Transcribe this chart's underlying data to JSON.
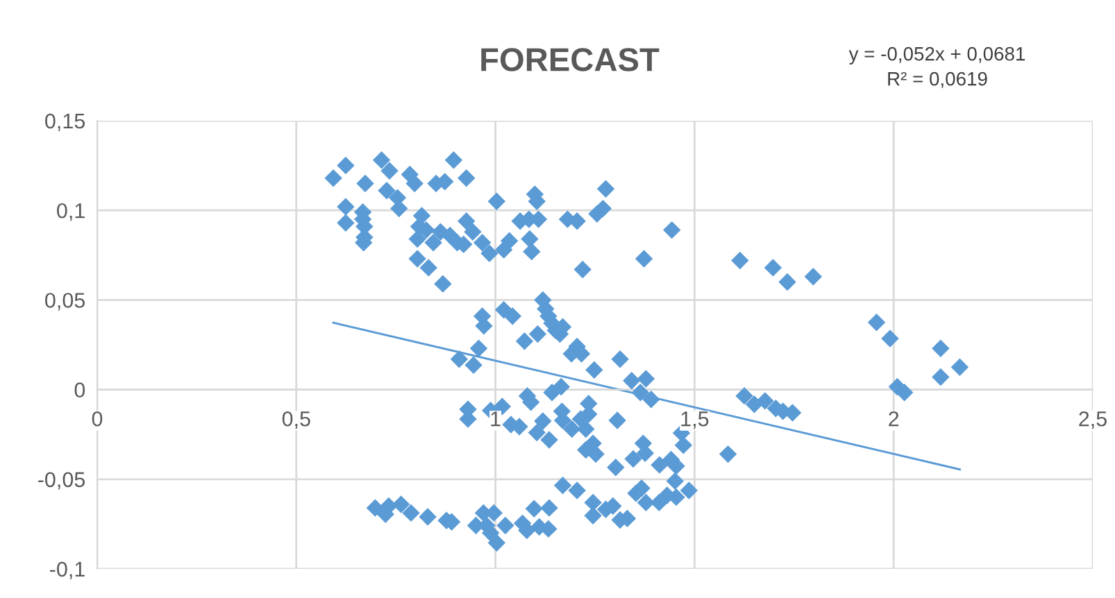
{
  "chart_data": {
    "type": "scatter",
    "title": "FORECAST",
    "annotations": [
      "y = -0,052x + 0,0681",
      "R² = 0,0619"
    ],
    "xlim": [
      0,
      2.5
    ],
    "ylim": [
      -0.1,
      0.15
    ],
    "xticks": [
      0,
      {
        "value": 0.5,
        "label": "0,5"
      },
      1,
      {
        "value": 1.5,
        "label": "1,5"
      },
      2,
      {
        "value": 2.5,
        "label": "2,5"
      }
    ],
    "yticks": [
      {
        "value": -0.1,
        "label": "-0,1"
      },
      {
        "value": -0.05,
        "label": "-0,05"
      },
      0,
      {
        "value": 0.05,
        "label": "0,05"
      },
      {
        "value": 0.1,
        "label": "0,1"
      },
      {
        "value": 0.15,
        "label": "0,15"
      }
    ],
    "grid": true,
    "legend": false,
    "marker": "diamond",
    "series": [
      {
        "color": "#5b9bd5",
        "x": [
          0.593,
          0.624,
          0.624,
          0.624,
          0.673,
          0.667,
          0.667,
          0.671,
          0.671,
          0.669,
          0.714,
          0.734,
          0.727,
          0.754,
          0.758,
          0.785,
          0.797,
          0.815,
          0.808,
          0.804,
          0.804,
          0.832,
          0.868,
          0.826,
          0.851,
          0.873,
          0.844,
          0.862,
          0.895,
          0.927,
          0.927,
          0.886,
          0.904,
          0.92,
          0.943,
          0.967,
          0.985,
          1.003,
          1.021,
          1.035,
          1.062,
          1.084,
          1.086,
          1.091,
          1.099,
          1.104,
          1.108,
          1.181,
          1.205,
          1.219,
          1.255,
          1.27,
          1.277,
          1.373,
          1.443,
          1.614,
          1.697,
          1.733,
          1.798,
          1.957,
          1.991,
          2.009,
          2.027,
          2.118,
          2.118,
          2.166,
          0.967,
          0.971,
          0.958,
          0.909,
          0.945,
          1.021,
          1.043,
          1.073,
          1.106,
          1.119,
          1.126,
          1.133,
          1.142,
          1.151,
          1.162,
          1.169,
          1.191,
          1.205,
          1.216,
          1.248,
          1.313,
          1.342,
          1.378,
          1.364,
          1.391,
          0.931,
          0.931,
          0.988,
          1.017,
          1.039,
          1.06,
          1.08,
          1.089,
          1.104,
          1.119,
          1.135,
          1.142,
          1.165,
          1.167,
          1.169,
          1.192,
          1.214,
          1.234,
          1.227,
          1.234,
          1.227,
          1.245,
          1.252,
          1.306,
          1.302,
          1.346,
          1.371,
          1.376,
          1.412,
          1.441,
          1.454,
          1.467,
          1.472,
          1.584,
          1.625,
          1.65,
          1.677,
          1.704,
          1.722,
          1.746,
          0.698,
          0.724,
          0.732,
          0.763,
          0.788,
          0.83,
          0.877,
          0.89,
          0.97,
          0.951,
          0.978,
          0.988,
          1.003,
          0.996,
          1.025,
          1.068,
          1.079,
          1.097,
          1.11,
          1.135,
          1.133,
          1.169,
          1.205,
          1.245,
          1.245,
          1.277,
          1.295,
          1.313,
          1.331,
          1.353,
          1.367,
          1.378,
          1.411,
          1.431,
          1.451,
          1.454,
          1.486
        ],
        "values": [
          0.118,
          0.125,
          0.102,
          0.093,
          0.115,
          0.099,
          0.095,
          0.091,
          0.085,
          0.082,
          0.128,
          0.122,
          0.111,
          0.107,
          0.101,
          0.12,
          0.115,
          0.097,
          0.091,
          0.084,
          0.073,
          0.068,
          0.059,
          0.089,
          0.115,
          0.116,
          0.082,
          0.088,
          0.128,
          0.118,
          0.094,
          0.086,
          0.082,
          0.081,
          0.088,
          0.082,
          0.076,
          0.105,
          0.078,
          0.083,
          0.094,
          0.095,
          0.084,
          0.077,
          0.109,
          0.105,
          0.095,
          0.095,
          0.094,
          0.067,
          0.098,
          0.101,
          0.112,
          0.073,
          0.089,
          0.072,
          0.068,
          0.06,
          0.063,
          0.0375,
          0.0285,
          0.0016,
          -0.0016,
          0.023,
          0.007,
          0.0125,
          0.041,
          0.0355,
          0.023,
          0.017,
          0.0137,
          0.0445,
          0.041,
          0.027,
          0.031,
          0.05,
          0.045,
          0.041,
          0.037,
          0.033,
          0.031,
          0.035,
          0.02,
          0.024,
          0.02,
          0.011,
          0.017,
          0.005,
          0.006,
          -0.0016,
          -0.0055,
          -0.011,
          -0.0164,
          -0.0117,
          -0.0094,
          -0.0195,
          -0.0207,
          -0.0035,
          -0.007,
          -0.024,
          -0.0176,
          -0.028,
          -0.0016,
          0.0016,
          -0.0121,
          -0.0172,
          -0.022,
          -0.0164,
          -0.0078,
          -0.022,
          -0.0137,
          -0.0336,
          -0.03,
          -0.036,
          -0.0172,
          -0.0434,
          -0.0387,
          -0.03,
          -0.0355,
          -0.042,
          -0.039,
          -0.0426,
          -0.0242,
          -0.031,
          -0.036,
          -0.0035,
          -0.0082,
          -0.0063,
          -0.0105,
          -0.0121,
          -0.0129,
          -0.066,
          -0.0695,
          -0.065,
          -0.064,
          -0.0688,
          -0.071,
          -0.073,
          -0.0738,
          -0.0688,
          -0.0758,
          -0.0758,
          -0.08,
          -0.0855,
          -0.0688,
          -0.0758,
          -0.0746,
          -0.0785,
          -0.0664,
          -0.0766,
          -0.066,
          -0.0777,
          -0.0535,
          -0.0563,
          -0.063,
          -0.0703,
          -0.0668,
          -0.065,
          -0.0727,
          -0.0719,
          -0.0578,
          -0.055,
          -0.063,
          -0.063,
          -0.059,
          -0.051,
          -0.06,
          -0.0563
        ]
      },
      {
        "type": "line",
        "color": "#5b9bd5",
        "marker": "none",
        "line_style": "solid",
        "x": [
          0.593,
          2.166
        ],
        "values": [
          0.0373,
          -0.0445
        ]
      }
    ]
  }
}
